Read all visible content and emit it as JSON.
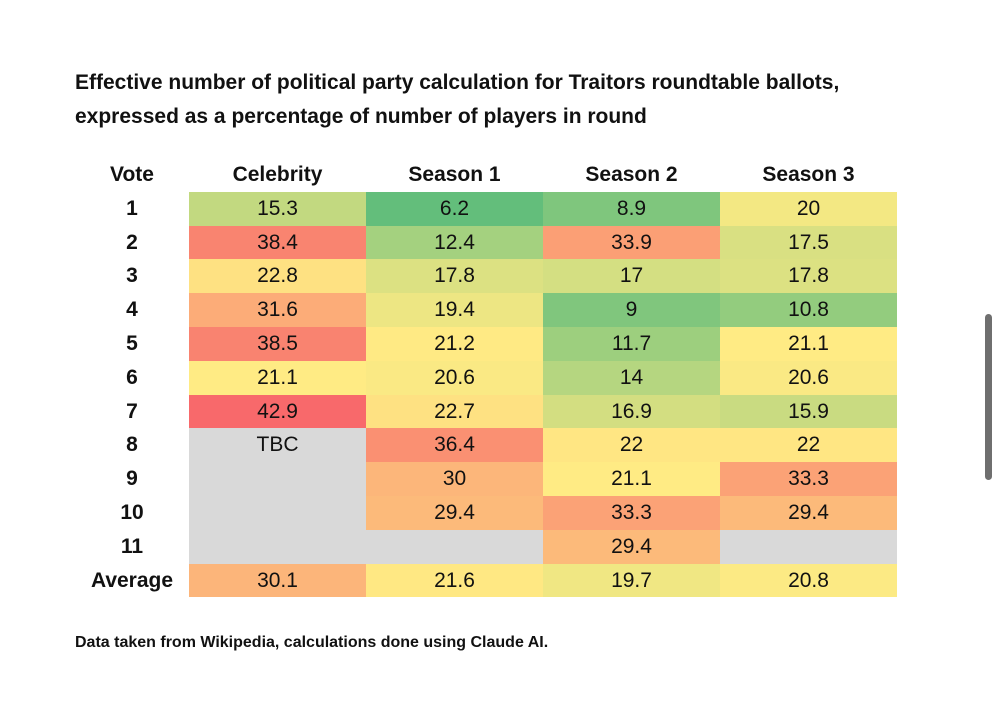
{
  "title_lines": [
    "Effective number of political party calculation for Traitors roundtable ballots,",
    "expressed as a percentage of number of players in round"
  ],
  "footnote": "Data taken from Wikipedia, calculations done using Claude AI.",
  "colors": {
    "low": "#63be7b",
    "mid": "#ffeb84",
    "high": "#f8696b",
    "empty": "#d9d9d9"
  },
  "chart_data": {
    "type": "heatmap",
    "title": "Effective number of political party calculation for Traitors roundtable ballots, expressed as a percentage of number of players in round",
    "row_header_label": "Vote",
    "columns": [
      "Celebrity",
      "Season 1",
      "Season 2",
      "Season 3"
    ],
    "rows": [
      "1",
      "2",
      "3",
      "4",
      "5",
      "6",
      "7",
      "8",
      "9",
      "10",
      "11",
      "Average"
    ],
    "values": [
      [
        "15.3",
        "6.2",
        "8.9",
        "20"
      ],
      [
        "38.4",
        "12.4",
        "33.9",
        "17.5"
      ],
      [
        "22.8",
        "17.8",
        "17",
        "17.8"
      ],
      [
        "31.6",
        "19.4",
        "9",
        "10.8"
      ],
      [
        "38.5",
        "21.2",
        "11.7",
        "21.1"
      ],
      [
        "21.1",
        "20.6",
        "14",
        "20.6"
      ],
      [
        "42.9",
        "22.7",
        "16.9",
        "15.9"
      ],
      [
        "TBC",
        "36.4",
        "22",
        "22"
      ],
      [
        "",
        "30",
        "21.1",
        "33.3"
      ],
      [
        "",
        "29.4",
        "33.3",
        "29.4"
      ],
      [
        "",
        "",
        "29.4",
        ""
      ],
      [
        "30.1",
        "21.6",
        "19.7",
        "20.8"
      ]
    ],
    "color_scale": {
      "min": 6.2,
      "mid": 21.1,
      "max": 42.9,
      "scheme": "green-yellow-red"
    }
  }
}
